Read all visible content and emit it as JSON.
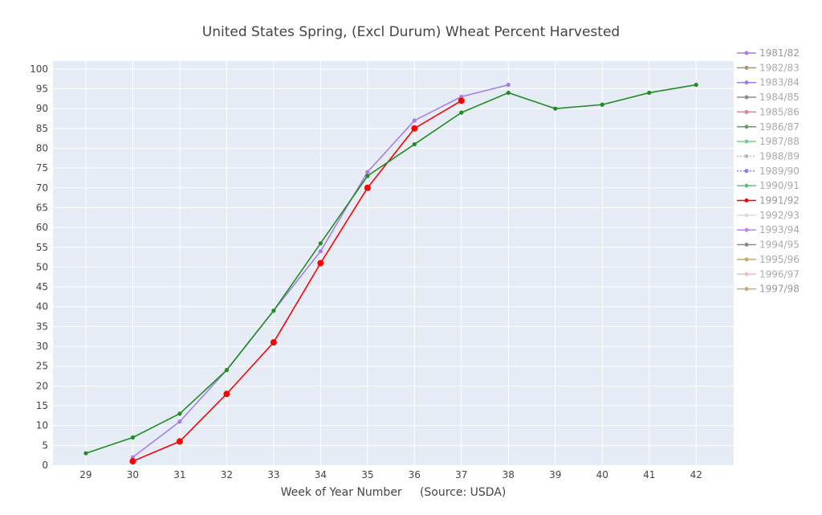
{
  "chart_data": {
    "type": "line",
    "title": "United States Spring, (Excl Durum) Wheat Percent Harvested",
    "xlabel": "Week of Year Number     (Source: USDA)",
    "ylabel": "",
    "xlim": [
      28.3,
      42.8
    ],
    "ylim": [
      0,
      102
    ],
    "x_ticks": [
      29,
      30,
      31,
      32,
      33,
      34,
      35,
      36,
      37,
      38,
      39,
      40,
      41,
      42
    ],
    "y_ticks": [
      0,
      5,
      10,
      15,
      20,
      25,
      30,
      35,
      40,
      45,
      50,
      55,
      60,
      65,
      70,
      75,
      80,
      85,
      90,
      95,
      100
    ],
    "grid": true,
    "legend_position": "right",
    "series": [
      {
        "name": "1981/82",
        "color": "#a77ee9",
        "dash": false,
        "legend_only": false,
        "x": [
          30,
          31,
          32,
          33,
          34,
          35,
          36,
          37,
          38
        ],
        "y": [
          2,
          11,
          24,
          39,
          54,
          74,
          87,
          93,
          96
        ]
      },
      {
        "name": "1982/83",
        "color": "#a89779",
        "dash": false,
        "legend_only": true,
        "x": [],
        "y": []
      },
      {
        "name": "1983/84",
        "color": "#9a7fe0",
        "dash": false,
        "legend_only": true,
        "x": [],
        "y": []
      },
      {
        "name": "1984/85",
        "color": "#8c8c8c",
        "dash": false,
        "legend_only": true,
        "x": [],
        "y": []
      },
      {
        "name": "1985/86",
        "color": "#e87c9a",
        "dash": false,
        "legend_only": true,
        "x": [],
        "y": []
      },
      {
        "name": "1986/87",
        "color": "#6b9a6b",
        "dash": false,
        "legend_only": true,
        "x": [],
        "y": []
      },
      {
        "name": "1987/88",
        "color": "#7fcc8f",
        "dash": false,
        "legend_only": true,
        "x": [],
        "y": []
      },
      {
        "name": "1988/89",
        "color": "#bbbbbb",
        "dash": true,
        "legend_only": true,
        "x": [],
        "y": []
      },
      {
        "name": "1989/90",
        "color": "#8a7fe0",
        "dash": true,
        "legend_only": true,
        "x": [],
        "y": []
      },
      {
        "name": "1990/91",
        "color": "#5fbf7f",
        "dash": false,
        "legend_only": true,
        "x": [],
        "y": []
      },
      {
        "name": "1991/92",
        "color": "#ff0000",
        "dash": false,
        "legend_only": false,
        "x": [
          30,
          31,
          32,
          33,
          34,
          35,
          36,
          37
        ],
        "y": [
          1,
          6,
          18,
          31,
          51,
          70,
          85,
          92
        ]
      },
      {
        "name": "1992/93",
        "color": "#d9d9ee",
        "dash": false,
        "legend_only": true,
        "x": [],
        "y": []
      },
      {
        "name": "1993/94",
        "color": "#b58ae6",
        "dash": false,
        "legend_only": true,
        "x": [],
        "y": []
      },
      {
        "name": "1994/95",
        "color": "#8c8c8c",
        "dash": false,
        "legend_only": true,
        "x": [],
        "y": []
      },
      {
        "name": "1995/96",
        "color": "#c9a86a",
        "dash": false,
        "legend_only": true,
        "x": [],
        "y": []
      },
      {
        "name": "1996/97",
        "color": "#f0b8c8",
        "dash": false,
        "legend_only": true,
        "x": [],
        "y": []
      },
      {
        "name": "1997/98",
        "color": "#c2ad72",
        "dash": false,
        "legend_only": false,
        "line_color": "#228b22",
        "x": [
          29,
          30,
          31,
          32,
          33,
          34,
          35,
          36,
          37,
          38,
          39,
          40,
          41,
          42
        ],
        "y": [
          3,
          7,
          13,
          24,
          39,
          56,
          73,
          81,
          89,
          94,
          90,
          91,
          94,
          96
        ]
      }
    ]
  }
}
